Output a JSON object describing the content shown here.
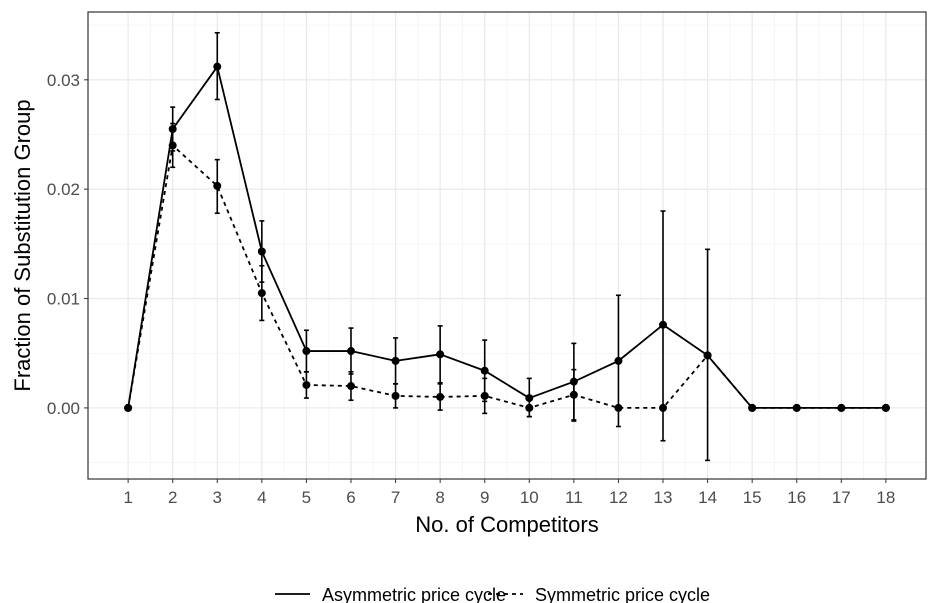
{
  "chart_data": {
    "type": "line",
    "title": "",
    "xlabel": "No. of Competitors",
    "ylabel": "Fraction of Substitution Group",
    "x": [
      1,
      2,
      3,
      4,
      5,
      6,
      7,
      8,
      9,
      10,
      11,
      12,
      13,
      14,
      15,
      16,
      17,
      18
    ],
    "xlim": [
      0.1,
      18.9
    ],
    "ylim": [
      -0.0065,
      0.0362
    ],
    "y_ticks": [
      0.0,
      0.01,
      0.02,
      0.03
    ],
    "y_tick_labels": [
      "0.00",
      "0.01",
      "0.02",
      "0.03"
    ],
    "x_tick_labels": [
      "1",
      "2",
      "3",
      "4",
      "5",
      "6",
      "7",
      "8",
      "9",
      "10",
      "11",
      "12",
      "13",
      "14",
      "15",
      "16",
      "17",
      "18"
    ],
    "grid": true,
    "legend_position": "bottom",
    "series": [
      {
        "name": "Asymmetric price cycle",
        "line_style": "solid",
        "values": [
          0.0,
          0.0255,
          0.0312,
          0.0143,
          0.0052,
          0.0052,
          0.0043,
          0.0049,
          0.0034,
          0.0009,
          0.0024,
          0.0043,
          0.0076,
          0.0048,
          0.0,
          0.0,
          0.0,
          0.0
        ],
        "error_low": [
          null,
          0.0235,
          0.0282,
          0.0115,
          0.0033,
          0.0031,
          0.0022,
          0.0023,
          0.0006,
          -0.0008,
          -0.0012,
          -0.0017,
          -0.003,
          -0.0048,
          null,
          null,
          null,
          null
        ],
        "error_high": [
          null,
          0.0275,
          0.0343,
          0.0171,
          0.0071,
          0.0073,
          0.0064,
          0.0075,
          0.0062,
          0.0027,
          0.0059,
          0.0103,
          0.018,
          0.0145,
          null,
          null,
          null,
          null
        ]
      },
      {
        "name": "Symmetric price cycle",
        "line_style": "dashed",
        "values": [
          0.0,
          0.024,
          0.0203,
          0.0105,
          0.0021,
          0.002,
          0.0011,
          0.001,
          0.0011,
          0.0,
          0.0012,
          0.0,
          0.0,
          0.0048,
          0.0,
          0.0,
          0.0,
          0.0
        ],
        "error_low": [
          null,
          0.022,
          0.0178,
          0.008,
          0.0009,
          0.0007,
          0.0,
          -0.0002,
          -0.0005,
          -0.0008,
          -0.0011,
          null,
          null,
          null,
          null,
          null,
          null,
          null
        ],
        "error_high": [
          null,
          0.026,
          0.0227,
          0.013,
          0.0033,
          0.0033,
          0.0022,
          0.0022,
          0.0027,
          0.0008,
          0.0035,
          null,
          null,
          null,
          null,
          null,
          null,
          null
        ]
      }
    ]
  }
}
